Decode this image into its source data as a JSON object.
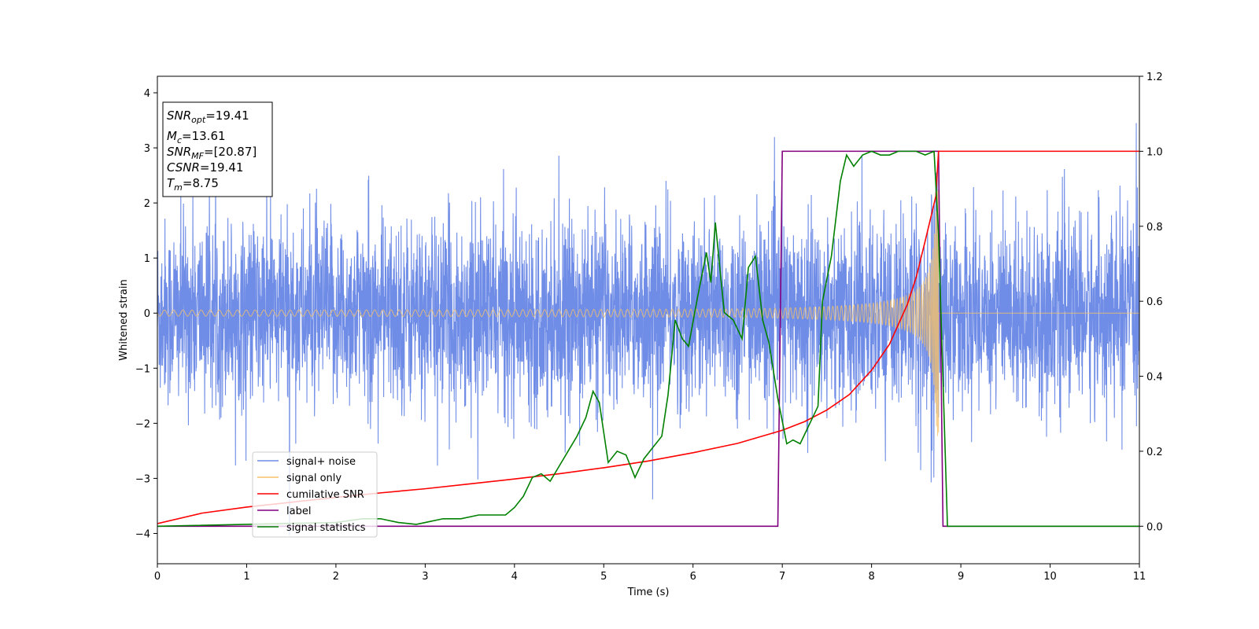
{
  "chart_data": {
    "type": "line",
    "xlabel": "Time (s)",
    "ylabel": "Whitened strain",
    "xlim": [
      0,
      11
    ],
    "ylim": [
      -4.55,
      4.3
    ],
    "y2lim": [
      -0.1,
      1.2
    ],
    "xticks": [
      0,
      1,
      2,
      3,
      4,
      5,
      6,
      7,
      8,
      9,
      10,
      11
    ],
    "yticks": [
      -4,
      -3,
      -2,
      -1,
      0,
      1,
      2,
      3,
      4
    ],
    "y2ticks": [
      "0.0",
      "0.2",
      "0.4",
      "0.6",
      "0.8",
      "1.0",
      "1.2"
    ],
    "info_box": [
      {
        "sym": "SNR",
        "sub": "opt",
        "val": "=19.41"
      },
      {
        "sym": "M",
        "sub": "c",
        "val": "=13.61"
      },
      {
        "sym": "SNR",
        "sub": "MF",
        "val": "=[20.87]"
      },
      {
        "sym": "CSNR",
        "sub": "",
        "val": "=19.41"
      },
      {
        "sym": "T",
        "sub": "m",
        "val": "=8.75"
      }
    ],
    "legend_position": "lower-left",
    "colors": {
      "noise": "#6f8ce6",
      "signal": "#f5c26b",
      "cumulative": "#ff0000",
      "label": "#800080",
      "stat": "#008000"
    },
    "series": [
      {
        "name": "signal+ noise",
        "axis": "left",
        "description_std": 0.85,
        "kind": "noise"
      },
      {
        "name": "signal only",
        "axis": "left",
        "kind": "chirp",
        "merger_time": 8.75
      },
      {
        "name": "cumilative SNR",
        "axis": "right",
        "x": [
          0,
          0.5,
          1,
          1.5,
          2,
          2.5,
          3,
          3.5,
          4,
          4.5,
          5,
          5.5,
          6,
          6.5,
          7,
          7.25,
          7.5,
          7.75,
          8,
          8.2,
          8.4,
          8.5,
          8.6,
          8.68,
          8.72,
          8.75,
          11
        ],
        "y": [
          0.007,
          0.035,
          0.051,
          0.064,
          0.077,
          0.089,
          0.1,
          0.113,
          0.126,
          0.14,
          0.156,
          0.174,
          0.196,
          0.221,
          0.256,
          0.279,
          0.31,
          0.351,
          0.416,
          0.485,
          0.591,
          0.664,
          0.76,
          0.84,
          0.88,
          1.0,
          1.0
        ]
      },
      {
        "name": "label",
        "axis": "right",
        "x": [
          0,
          6.95,
          7.0,
          8.75,
          8.8,
          11
        ],
        "y": [
          0,
          0,
          1,
          1,
          0,
          0
        ]
      },
      {
        "name": "signal statistics",
        "axis": "right",
        "x": [
          0,
          2.0,
          2.3,
          2.5,
          2.7,
          2.9,
          3.0,
          3.2,
          3.4,
          3.6,
          3.7,
          3.9,
          4.0,
          4.1,
          4.2,
          4.3,
          4.4,
          4.5,
          4.6,
          4.7,
          4.8,
          4.88,
          4.95,
          5.05,
          5.15,
          5.25,
          5.35,
          5.45,
          5.55,
          5.65,
          5.72,
          5.8,
          5.88,
          5.95,
          6.05,
          6.15,
          6.2,
          6.25,
          6.35,
          6.45,
          6.55,
          6.62,
          6.7,
          6.78,
          6.85,
          6.95,
          7.05,
          7.12,
          7.2,
          7.3,
          7.4,
          7.45,
          7.55,
          7.65,
          7.72,
          7.8,
          7.9,
          8.0,
          8.1,
          8.2,
          8.3,
          8.4,
          8.5,
          8.6,
          8.7,
          8.75,
          8.85,
          11
        ],
        "y": [
          0.0,
          0.01,
          0.02,
          0.02,
          0.01,
          0.005,
          0.01,
          0.02,
          0.02,
          0.03,
          0.03,
          0.03,
          0.05,
          0.08,
          0.13,
          0.14,
          0.12,
          0.16,
          0.2,
          0.24,
          0.29,
          0.36,
          0.33,
          0.17,
          0.2,
          0.19,
          0.13,
          0.18,
          0.21,
          0.24,
          0.35,
          0.55,
          0.5,
          0.48,
          0.61,
          0.73,
          0.65,
          0.81,
          0.57,
          0.55,
          0.5,
          0.69,
          0.72,
          0.55,
          0.49,
          0.34,
          0.22,
          0.23,
          0.22,
          0.27,
          0.32,
          0.6,
          0.72,
          0.92,
          0.99,
          0.96,
          0.99,
          1.0,
          0.99,
          0.99,
          1.0,
          1.0,
          1.0,
          0.99,
          1.0,
          0.78,
          0.0,
          0.0
        ]
      }
    ]
  }
}
